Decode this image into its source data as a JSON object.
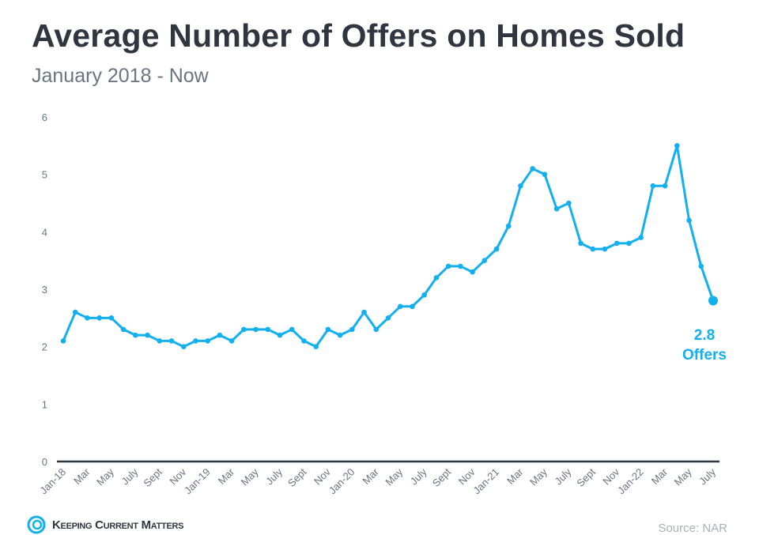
{
  "chart_data": {
    "type": "line",
    "title": "Average Number of Offers on Homes Sold",
    "subtitle": "January 2018 - Now",
    "xlabel": "",
    "ylabel": "",
    "ylim": [
      0,
      6
    ],
    "yticks": [
      0,
      1,
      2,
      3,
      4,
      5,
      6
    ],
    "grid": false,
    "color": "#12b0ee",
    "x": [
      "Jan-18",
      "Feb-18",
      "Mar-18",
      "Apr-18",
      "May-18",
      "Jun-18",
      "Jul-18",
      "Aug-18",
      "Sep-18",
      "Oct-18",
      "Nov-18",
      "Dec-18",
      "Jan-19",
      "Feb-19",
      "Mar-19",
      "Apr-19",
      "May-19",
      "Jun-19",
      "Jul-19",
      "Aug-19",
      "Sep-19",
      "Oct-19",
      "Nov-19",
      "Dec-19",
      "Jan-20",
      "Feb-20",
      "Mar-20",
      "Apr-20",
      "May-20",
      "Jun-20",
      "Jul-20",
      "Aug-20",
      "Sep-20",
      "Oct-20",
      "Nov-20",
      "Dec-20",
      "Jan-21",
      "Feb-21",
      "Mar-21",
      "Apr-21",
      "May-21",
      "Jun-21",
      "Jul-21",
      "Aug-21",
      "Sep-21",
      "Oct-21",
      "Nov-21",
      "Dec-21",
      "Jan-22",
      "Feb-22",
      "Mar-22",
      "Apr-22",
      "May-22",
      "Jun-22",
      "Jul-22"
    ],
    "values": [
      2.1,
      2.6,
      2.5,
      2.5,
      2.5,
      2.3,
      2.2,
      2.2,
      2.1,
      2.1,
      2.0,
      2.1,
      2.1,
      2.2,
      2.1,
      2.3,
      2.3,
      2.3,
      2.2,
      2.3,
      2.1,
      2.0,
      2.3,
      2.2,
      2.3,
      2.6,
      2.3,
      2.5,
      2.7,
      2.7,
      2.9,
      3.2,
      3.4,
      3.4,
      3.3,
      3.5,
      3.7,
      4.1,
      4.8,
      5.1,
      5.0,
      4.4,
      4.5,
      3.8,
      3.7,
      3.7,
      3.8,
      3.8,
      3.9,
      4.8,
      4.8,
      5.5,
      4.2,
      3.4,
      2.8
    ],
    "xtick_labels": [
      "Jan-18",
      "Mar",
      "May",
      "July",
      "Sept",
      "Nov",
      "Jan-19",
      "Mar",
      "May",
      "July",
      "Sept",
      "Nov",
      "Jan-20",
      "Mar",
      "May",
      "July",
      "Sept",
      "Nov",
      "Jan-21",
      "Mar",
      "May",
      "July",
      "Sept",
      "Nov",
      "Jan-22",
      "Mar",
      "May",
      "July"
    ],
    "annotation": {
      "value": "2.8",
      "unit": "Offers"
    }
  },
  "footer": {
    "brand": "Keeping Current Matters",
    "source": "Source: NAR"
  }
}
